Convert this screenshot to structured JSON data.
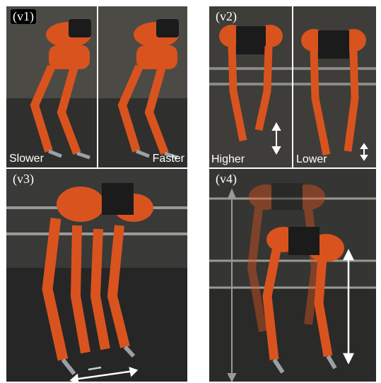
{
  "panels": [
    {
      "tag": "(v1)",
      "captions": [
        "Slower",
        "Faster"
      ]
    },
    {
      "tag": "(v2)",
      "captions": [
        "Higher",
        "Lower"
      ]
    },
    {
      "tag": "(v3)"
    },
    {
      "tag": "(v4)"
    }
  ],
  "colors": {
    "robot": "#d9531e",
    "robot_dark": "#a23b14",
    "metal": "#9aa0a6",
    "floor": "#2b2b2b"
  }
}
